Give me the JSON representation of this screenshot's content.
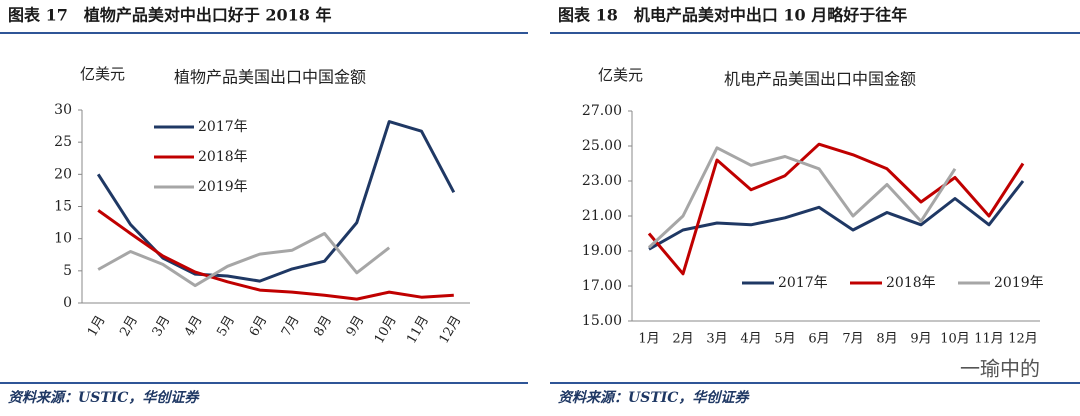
{
  "chart_data": [
    {
      "type": "line",
      "caption": "图表 17　植物产品美对中出口好于 2018 年",
      "source": "资料来源：USTIC，华创证券",
      "title": "植物产品美国出口中国金额",
      "ylabel": "亿美元",
      "categories": [
        "1月",
        "2月",
        "3月",
        "4月",
        "5月",
        "6月",
        "7月",
        "8月",
        "9月",
        "10月",
        "11月",
        "12月"
      ],
      "series": [
        {
          "name": "2017年",
          "color": "#1f3864",
          "values": [
            20,
            12.2,
            7,
            4.5,
            4.2,
            3.4,
            5.3,
            6.5,
            12.5,
            28.2,
            26.7,
            17.2
          ]
        },
        {
          "name": "2018年",
          "color": "#c00000",
          "values": [
            14.4,
            10.8,
            7.3,
            4.8,
            3.3,
            2.0,
            1.7,
            1.2,
            0.6,
            1.7,
            0.9,
            1.2
          ]
        },
        {
          "name": "2019年",
          "color": "#a6a6a6",
          "values": [
            5.2,
            8,
            6,
            2.7,
            5.7,
            7.6,
            8.2,
            10.8,
            4.7,
            8.6,
            null,
            null
          ]
        }
      ],
      "ylim": [
        0,
        30
      ],
      "yticks": [
        0,
        5,
        10,
        15,
        20,
        25,
        30
      ],
      "legend": "upper left"
    },
    {
      "type": "line",
      "caption": "图表 18　机电产品美对中出口 10 月略好于往年",
      "source": "资料来源：USTIC，华创证券",
      "title": "机电产品美国出口中国金额",
      "ylabel": "亿美元",
      "categories": [
        "1月",
        "2月",
        "3月",
        "4月",
        "5月",
        "6月",
        "7月",
        "8月",
        "9月",
        "10月",
        "11月",
        "12月"
      ],
      "series": [
        {
          "name": "2017年",
          "color": "#1f3864",
          "values": [
            19.1,
            20.2,
            20.6,
            20.5,
            20.9,
            21.5,
            20.2,
            21.2,
            20.5,
            22.0,
            20.5,
            23.0
          ]
        },
        {
          "name": "2018年",
          "color": "#c00000",
          "values": [
            20.0,
            17.7,
            24.2,
            22.5,
            23.3,
            25.1,
            24.5,
            23.7,
            21.8,
            23.2,
            21.0,
            24.0
          ]
        },
        {
          "name": "2019年",
          "color": "#a6a6a6",
          "values": [
            19.2,
            21.0,
            24.9,
            23.9,
            24.4,
            23.7,
            21.0,
            22.8,
            20.7,
            23.7,
            null,
            null
          ]
        }
      ],
      "ylim": [
        15,
        27
      ],
      "yticks": [
        {
          "value": 15,
          "label": "15.00"
        },
        {
          "value": 17,
          "label": "17.00"
        },
        {
          "value": 19,
          "label": "19.00"
        },
        {
          "value": 21,
          "label": "21.00"
        },
        {
          "value": 23,
          "label": "23.00"
        },
        {
          "value": 25,
          "label": "25.00"
        },
        {
          "value": 27,
          "label": "27.00"
        }
      ],
      "legend": "lower center"
    }
  ],
  "watermark": "一瑜中的"
}
